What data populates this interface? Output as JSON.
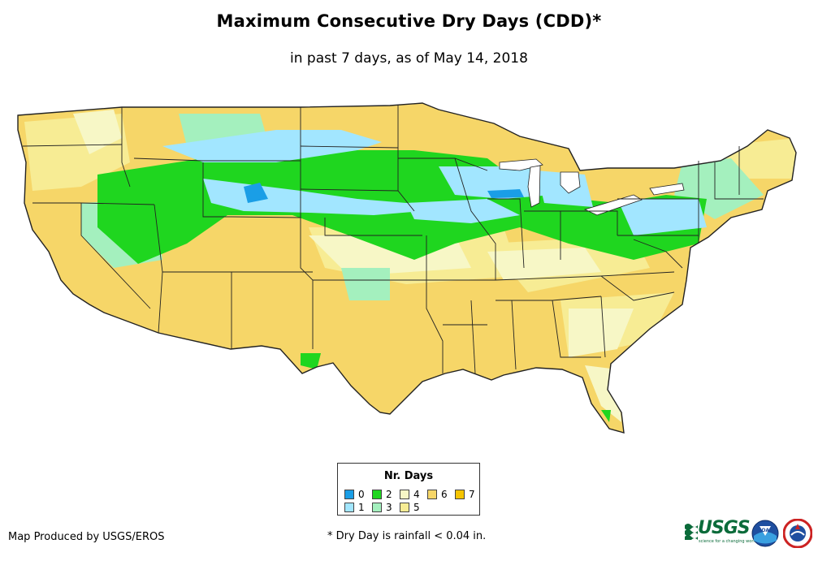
{
  "title": "Maximum Consecutive Dry Days (CDD)*",
  "subtitle": "in past 7 days, as of May 14, 2018",
  "legend": {
    "title": "Nr. Days",
    "items": [
      {
        "label": "0",
        "color": "#1a9ee6"
      },
      {
        "label": "1",
        "color": "#a2e6ff"
      },
      {
        "label": "2",
        "color": "#1fd61f"
      },
      {
        "label": "3",
        "color": "#a4f0be"
      },
      {
        "label": "4",
        "color": "#f7f7c6"
      },
      {
        "label": "5",
        "color": "#f7ec94"
      },
      {
        "label": "6",
        "color": "#f6d668"
      },
      {
        "label": "7",
        "color": "#f5c400"
      }
    ]
  },
  "credit": "Map Produced by USGS/EROS",
  "footnote": "* Dry Day is rainfall < 0.04 in.",
  "logos": {
    "usgs": "USGS",
    "usgs_tagline": "science for a changing world",
    "noaa": "NOAA",
    "nws": "National Weather Service"
  },
  "colors": {
    "border": "#222222",
    "background": "#ffffff"
  }
}
